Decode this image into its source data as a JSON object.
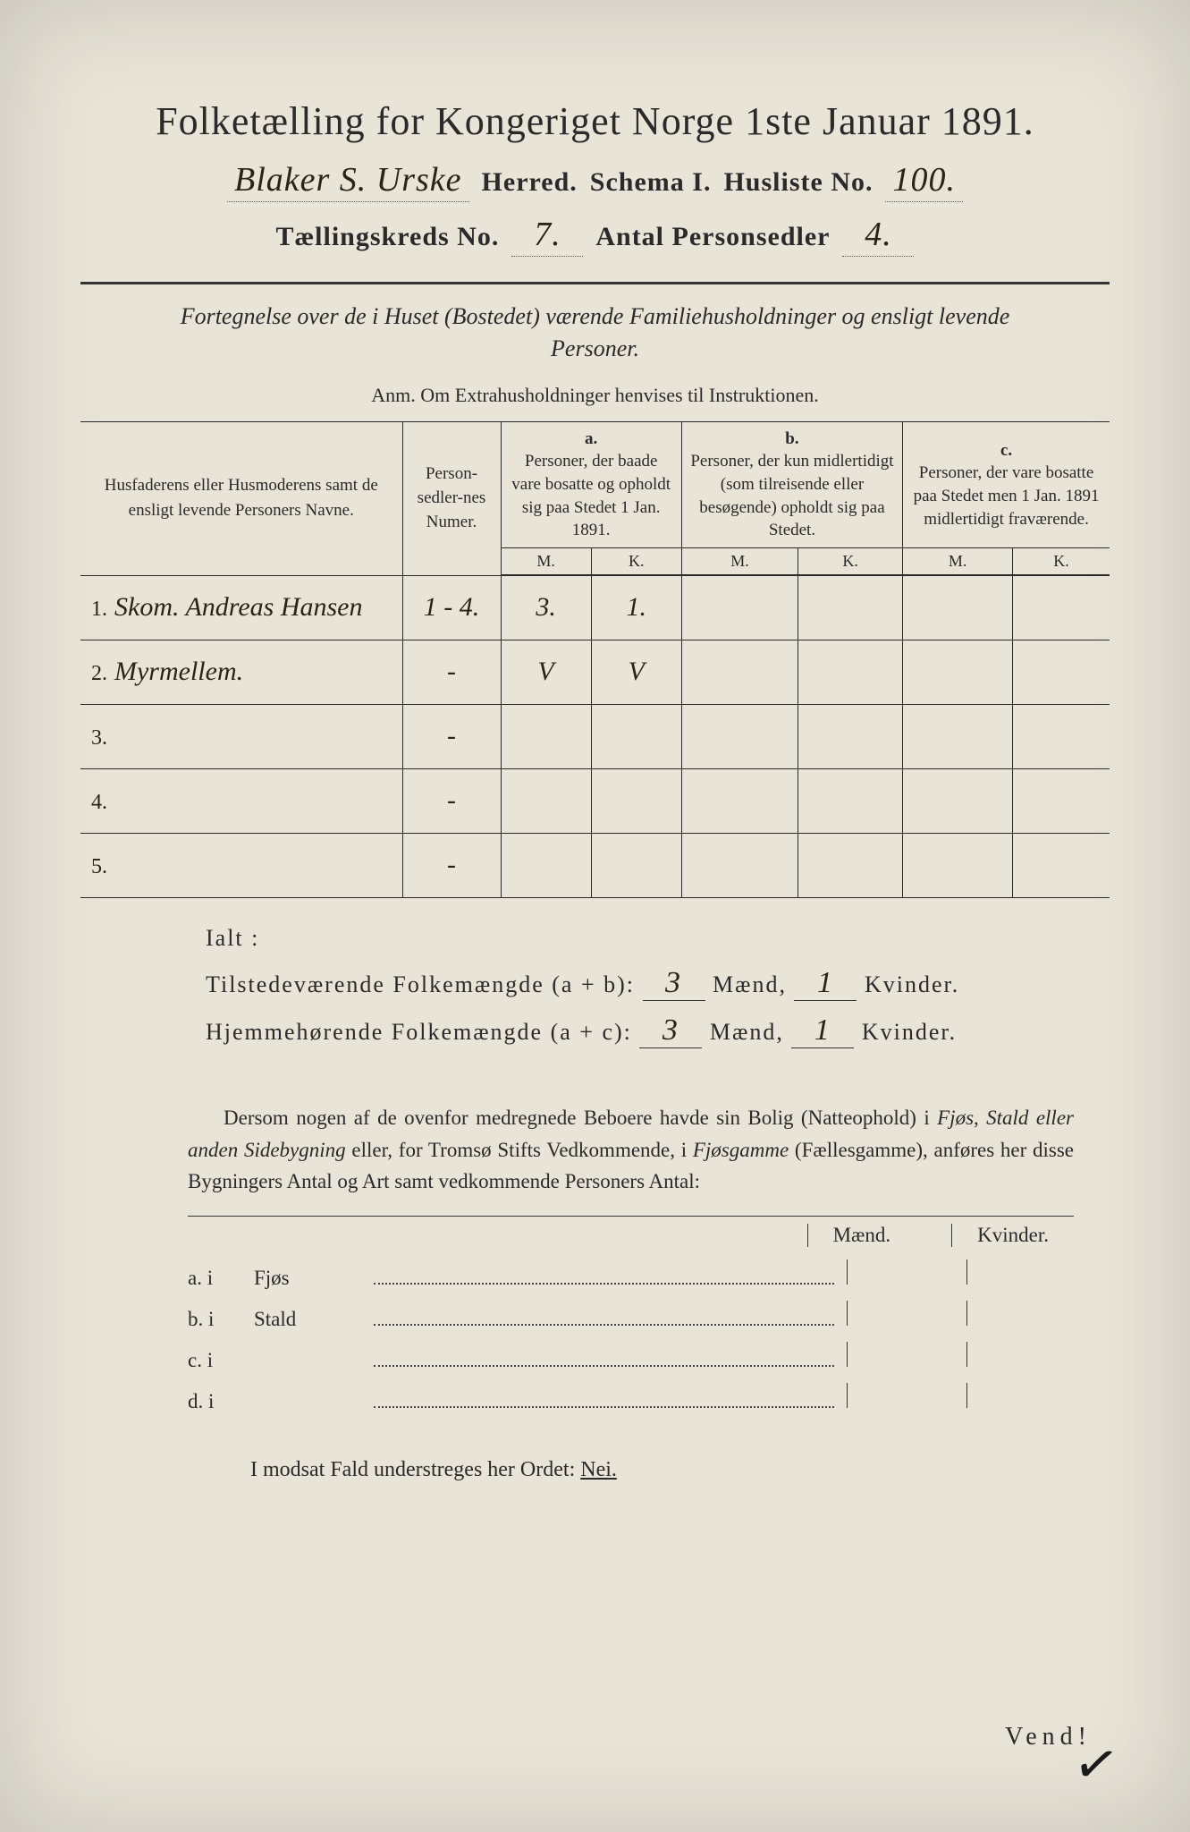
{
  "title": "Folketælling for Kongeriget Norge 1ste Januar 1891.",
  "header": {
    "herred_value": "Blaker S. Urske",
    "herred_label": "Herred.",
    "schema_label": "Schema I.",
    "husliste_label": "Husliste No.",
    "husliste_value": "100.",
    "kreds_label": "Tællingskreds No.",
    "kreds_value": "7.",
    "antall_label": "Antal Personsedler",
    "antall_value": "4."
  },
  "fortegnelse": "Fortegnelse over de i Huset (Bostedet) værende Familiehusholdninger og ensligt levende Personer.",
  "anm": "Anm.  Om Extrahusholdninger henvises til Instruktionen.",
  "table": {
    "col_names": "Husfaderens eller Husmoderens samt de ensligt levende Personers Navne.",
    "col_numer": "Person-sedler-nes Numer.",
    "col_a_top": "a.",
    "col_a": "Personer, der baade vare bosatte og opholdt sig paa Stedet 1 Jan. 1891.",
    "col_b_top": "b.",
    "col_b": "Personer, der kun midlertidigt (som tilreisende eller besøgende) opholdt sig paa Stedet.",
    "col_c_top": "c.",
    "col_c": "Personer, der vare bosatte paa Stedet men 1 Jan. 1891 midlertidigt fraværende.",
    "m": "M.",
    "k": "K.",
    "rows": [
      {
        "num": "1.",
        "name": "Skom. Andreas Hansen",
        "numer": "1 - 4.",
        "a_m": "3.",
        "a_k": "1.",
        "b_m": "",
        "b_k": "",
        "c_m": "",
        "c_k": ""
      },
      {
        "num": "2.",
        "name": "Myrmellem.",
        "numer": "-",
        "a_m": "V",
        "a_k": "V",
        "b_m": "",
        "b_k": "",
        "c_m": "",
        "c_k": ""
      },
      {
        "num": "3.",
        "name": "",
        "numer": "-",
        "a_m": "",
        "a_k": "",
        "b_m": "",
        "b_k": "",
        "c_m": "",
        "c_k": ""
      },
      {
        "num": "4.",
        "name": "",
        "numer": "-",
        "a_m": "",
        "a_k": "",
        "b_m": "",
        "b_k": "",
        "c_m": "",
        "c_k": ""
      },
      {
        "num": "5.",
        "name": "",
        "numer": "-",
        "a_m": "",
        "a_k": "",
        "b_m": "",
        "b_k": "",
        "c_m": "",
        "c_k": ""
      }
    ]
  },
  "ialt": "Ialt :",
  "summary": {
    "line1_label": "Tilstedeværende Folkemængde (a + b):",
    "line2_label": "Hjemmehørende Folkemængde (a + c):",
    "maend": "Mænd,",
    "kvinder": "Kvinder.",
    "l1_m": "3",
    "l1_k": "1",
    "l2_m": "3",
    "l2_k": "1"
  },
  "paragraph": {
    "p1": "Dersom nogen af de ovenfor medregnede Beboere havde sin Bolig (Natteophold) i ",
    "p2": "Fjøs, Stald eller anden Sidebygning",
    "p3": " eller, for Tromsø Stifts Vedkommende, i ",
    "p4": "Fjøsgamme",
    "p5": " (Fællesgamme), anføres her disse Bygningers Antal og Art samt vedkommende Personers Antal:"
  },
  "buildings": {
    "maend": "Mænd.",
    "kvinder": "Kvinder.",
    "rows": [
      {
        "label": "a.  i",
        "kind": "Fjøs"
      },
      {
        "label": "b.  i",
        "kind": "Stald"
      },
      {
        "label": "c.  i",
        "kind": ""
      },
      {
        "label": "d.  i",
        "kind": ""
      }
    ]
  },
  "modsatt": {
    "pre": "I modsat Fald understreges her Ordet: ",
    "nei": "Nei."
  },
  "vend": "Vend!",
  "colors": {
    "paper": "#e8e4d8",
    "ink": "#2a2a2a",
    "handwriting": "#2a2318"
  }
}
